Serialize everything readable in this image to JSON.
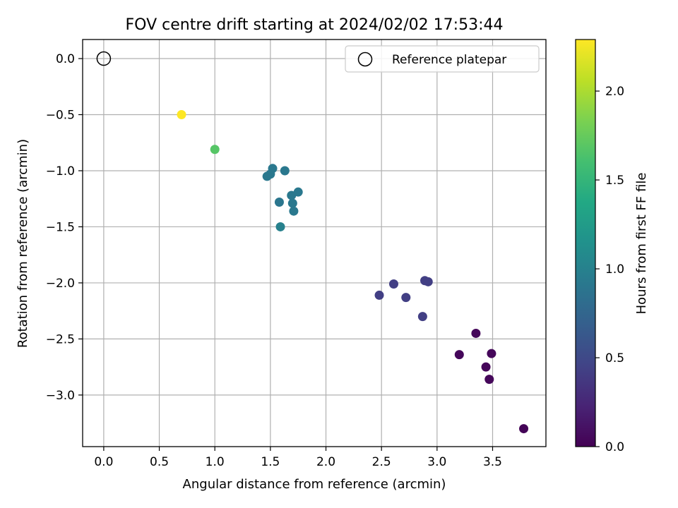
{
  "chart_data": {
    "type": "scatter",
    "title": "FOV centre drift starting at 2024/02/02 17:53:44",
    "xlabel": "Angular distance from reference (arcmin)",
    "ylabel": "Rotation from reference (arcmin)",
    "xlim": [
      -0.19,
      3.98
    ],
    "ylim": [
      -3.46,
      0.17
    ],
    "xticks": [
      0.0,
      0.5,
      1.0,
      1.5,
      2.0,
      2.5,
      3.0,
      3.5
    ],
    "yticks": [
      0.0,
      -0.5,
      -1.0,
      -1.5,
      -2.0,
      -2.5,
      -3.0
    ],
    "grid": true,
    "colormap": "viridis",
    "colorbar": {
      "label": "Hours from first FF file",
      "min": 0.0,
      "max": 2.29,
      "ticks": [
        0.0,
        0.5,
        1.0,
        1.5,
        2.0
      ]
    },
    "legend": {
      "position": "top-right",
      "entries": [
        {
          "label": "Reference platepar",
          "marker": "open-circle"
        }
      ]
    },
    "reference_point": {
      "x": 0.0,
      "y": 0.0
    },
    "points": [
      {
        "x": 0.7,
        "y": -0.5,
        "c": 2.29
      },
      {
        "x": 1.0,
        "y": -0.81,
        "c": 1.68
      },
      {
        "x": 1.47,
        "y": -1.05,
        "c": 0.92
      },
      {
        "x": 1.5,
        "y": -1.03,
        "c": 0.92
      },
      {
        "x": 1.52,
        "y": -0.98,
        "c": 0.92
      },
      {
        "x": 1.63,
        "y": -1.0,
        "c": 0.92
      },
      {
        "x": 1.58,
        "y": -1.28,
        "c": 0.9
      },
      {
        "x": 1.69,
        "y": -1.22,
        "c": 0.92
      },
      {
        "x": 1.75,
        "y": -1.19,
        "c": 0.92
      },
      {
        "x": 1.7,
        "y": -1.29,
        "c": 0.92
      },
      {
        "x": 1.71,
        "y": -1.36,
        "c": 0.92
      },
      {
        "x": 1.59,
        "y": -1.5,
        "c": 1.0
      },
      {
        "x": 2.48,
        "y": -2.11,
        "c": 0.42
      },
      {
        "x": 2.61,
        "y": -2.01,
        "c": 0.42
      },
      {
        "x": 2.72,
        "y": -2.13,
        "c": 0.42
      },
      {
        "x": 2.89,
        "y": -1.98,
        "c": 0.42
      },
      {
        "x": 2.92,
        "y": -1.99,
        "c": 0.42
      },
      {
        "x": 2.87,
        "y": -2.3,
        "c": 0.42
      },
      {
        "x": 3.35,
        "y": -2.45,
        "c": 0.04
      },
      {
        "x": 3.49,
        "y": -2.63,
        "c": 0.04
      },
      {
        "x": 3.2,
        "y": -2.64,
        "c": 0.04
      },
      {
        "x": 3.44,
        "y": -2.75,
        "c": 0.04
      },
      {
        "x": 3.47,
        "y": -2.86,
        "c": 0.04
      },
      {
        "x": 3.78,
        "y": -3.3,
        "c": 0.02
      }
    ]
  }
}
